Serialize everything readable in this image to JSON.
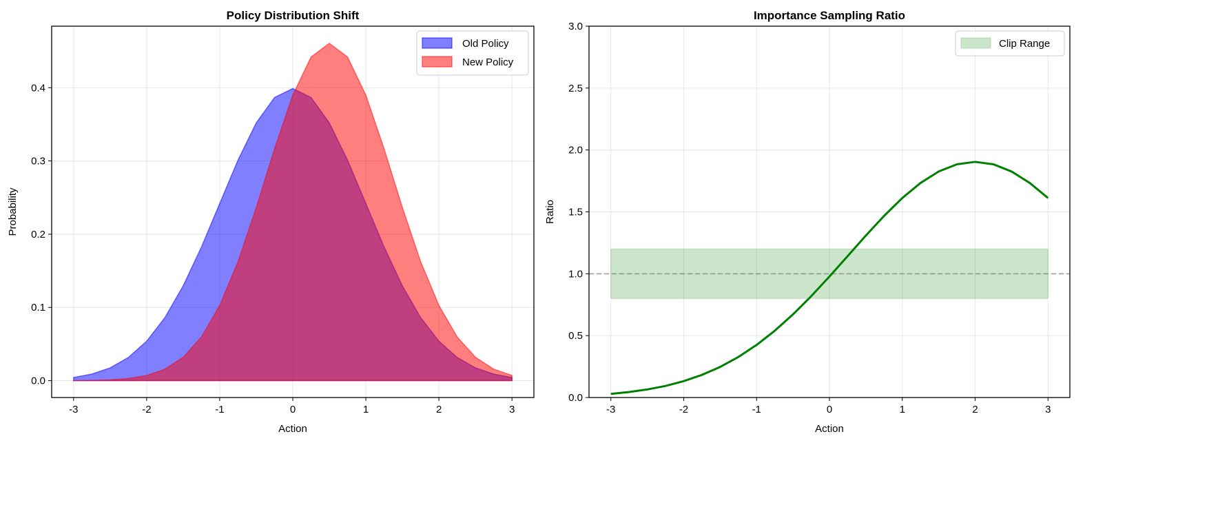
{
  "chart_data": [
    {
      "type": "area",
      "title": "Policy Distribution Shift",
      "xlabel": "Action",
      "ylabel": "Probability",
      "xlim": [
        -3.3,
        3.3
      ],
      "ylim": [
        -0.023,
        0.484
      ],
      "xticks": [
        -3,
        -2,
        -1,
        0,
        1,
        2,
        3
      ],
      "yticks": [
        0.0,
        0.1,
        0.2,
        0.3,
        0.4
      ],
      "grid": true,
      "legend_position": "top-right",
      "x": [
        -3,
        -2.75,
        -2.5,
        -2.25,
        -2,
        -1.75,
        -1.5,
        -1.25,
        -1,
        -0.75,
        -0.5,
        -0.25,
        0,
        0.25,
        0.5,
        0.75,
        1,
        1.25,
        1.5,
        1.75,
        2,
        2.25,
        2.5,
        2.75,
        3
      ],
      "series": [
        {
          "name": "Old Policy",
          "color": "#0000ff",
          "values": [
            0.00443,
            0.00909,
            0.01753,
            0.03174,
            0.05399,
            0.08628,
            0.12952,
            0.18265,
            0.24197,
            0.30114,
            0.35207,
            0.38667,
            0.39894,
            0.38667,
            0.35207,
            0.30114,
            0.24197,
            0.18265,
            0.12952,
            0.08628,
            0.05399,
            0.03174,
            0.01753,
            0.00909,
            0.00443
          ]
        },
        {
          "name": "New Policy",
          "color": "#ff0000",
          "values": [
            0.00013,
            0.0004,
            0.00114,
            0.00298,
            0.00714,
            0.01576,
            0.03201,
            0.05981,
            0.10279,
            0.16256,
            0.23651,
            0.31661,
            0.38994,
            0.44186,
            0.46066,
            0.44186,
            0.38994,
            0.31661,
            0.23651,
            0.16256,
            0.10279,
            0.05981,
            0.03201,
            0.01576,
            0.00714
          ]
        }
      ]
    },
    {
      "type": "line",
      "title": "Importance Sampling Ratio",
      "xlabel": "Action",
      "ylabel": "Ratio",
      "xlim": [
        -3.3,
        3.3
      ],
      "ylim": [
        0,
        3
      ],
      "xticks": [
        -3,
        -2,
        -1,
        0,
        1,
        2,
        3
      ],
      "yticks": [
        0.0,
        0.5,
        1.0,
        1.5,
        2.0,
        2.5,
        3.0
      ],
      "grid": true,
      "legend_position": "top-right",
      "x": [
        -3,
        -2.75,
        -2.5,
        -2.25,
        -2,
        -1.75,
        -1.5,
        -1.25,
        -1,
        -0.75,
        -0.5,
        -0.25,
        0,
        0.25,
        0.5,
        0.75,
        1,
        1.25,
        1.5,
        1.75,
        2,
        2.25,
        2.5,
        2.75,
        3
      ],
      "series": [
        {
          "name": "Ratio",
          "color": "#008000",
          "values": [
            0.0296,
            0.0443,
            0.0652,
            0.0937,
            0.1323,
            0.1827,
            0.2471,
            0.3274,
            0.4248,
            0.5398,
            0.6718,
            0.8188,
            0.9774,
            1.1427,
            1.3084,
            1.4673,
            1.6115,
            1.7334,
            1.8261,
            1.8842,
            1.9039,
            1.8843,
            1.826,
            1.7335,
            1.6115
          ]
        }
      ],
      "clip_range": {
        "name": "Clip Range",
        "low": 0.8,
        "high": 1.2,
        "x": [
          -3,
          3
        ],
        "color": "#008000"
      },
      "reference_line": {
        "y": 1.0,
        "color": "#808080"
      }
    }
  ]
}
